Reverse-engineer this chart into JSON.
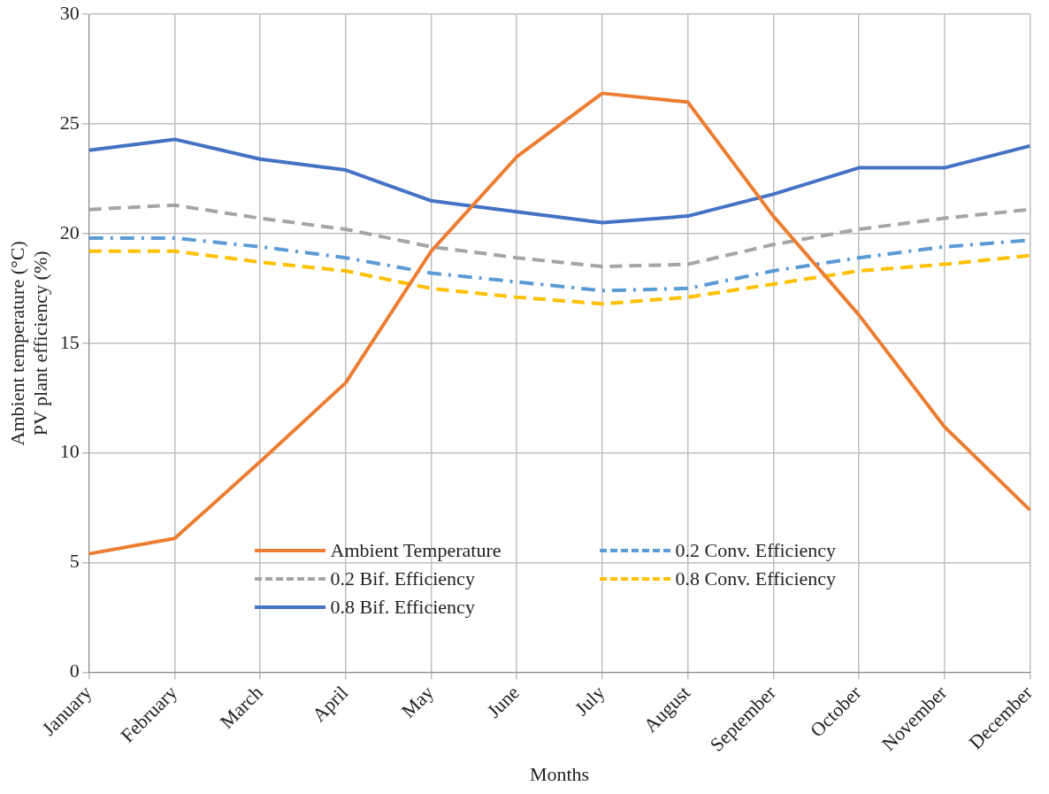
{
  "chart_data": {
    "type": "line",
    "xlabel": "Months",
    "ylabel": "Ambient temperature (°C)\nPV plant efficiency (%)",
    "categories": [
      "January",
      "February",
      "March",
      "April",
      "May",
      "June",
      "July",
      "August",
      "September",
      "October",
      "November",
      "December"
    ],
    "ylim": [
      0,
      30
    ],
    "yticks": [
      0,
      5,
      10,
      15,
      20,
      25,
      30
    ],
    "grid": true,
    "legend": "bottom",
    "marker": "none",
    "series": [
      {
        "name": "Ambient Temperature",
        "color": "#ed7d31",
        "line_style": "solid",
        "values": [
          5.4,
          6.1,
          9.6,
          13.2,
          19.2,
          23.5,
          26.4,
          26.0,
          20.8,
          16.3,
          11.2,
          7.4
        ]
      },
      {
        "name": "0.2 Conv. Efficiency",
        "color": "#5b9bd5",
        "line_style": "dashdot",
        "values": [
          19.8,
          19.8,
          19.4,
          18.9,
          18.2,
          17.8,
          17.4,
          17.5,
          18.3,
          18.9,
          19.4,
          19.7
        ]
      },
      {
        "name": "0.2 Bif. Efficiency",
        "color": "#a5a5a5",
        "line_style": "dashed",
        "values": [
          21.1,
          21.3,
          20.7,
          20.2,
          19.4,
          18.9,
          18.5,
          18.6,
          19.5,
          20.2,
          20.7,
          21.1
        ]
      },
      {
        "name": "0.8 Conv. Efficiency",
        "color": "#ffc000",
        "line_style": "dashed",
        "values": [
          19.2,
          19.2,
          18.7,
          18.3,
          17.5,
          17.1,
          16.8,
          17.1,
          17.7,
          18.3,
          18.6,
          19.0
        ]
      },
      {
        "name": "0.8 Bif. Efficiency",
        "color": "#4472c4",
        "line_style": "solid",
        "values": [
          23.8,
          24.3,
          23.4,
          22.9,
          21.5,
          21.0,
          20.5,
          20.8,
          21.8,
          23.0,
          23.0,
          24.0
        ]
      }
    ]
  }
}
